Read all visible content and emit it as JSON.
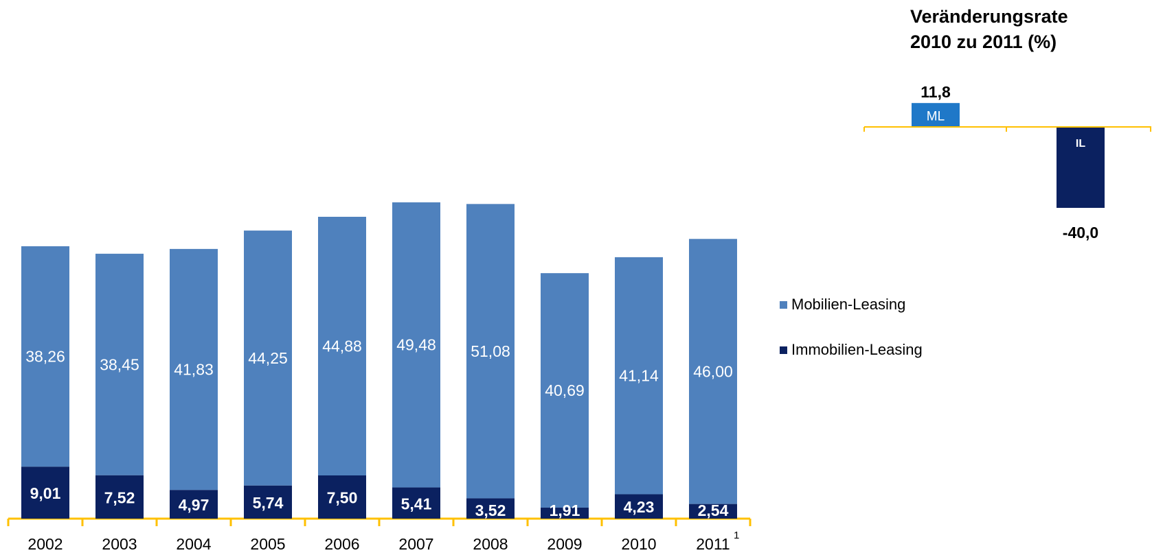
{
  "chart_data": [
    {
      "type": "bar",
      "stacked": true,
      "categories": [
        "2002",
        "2003",
        "2004",
        "2005",
        "2006",
        "2007",
        "2008",
        "2009",
        "2010",
        "2011"
      ],
      "footnote_marker": "1",
      "footnote_category": "2011",
      "series": [
        {
          "name": "Immobilien-Leasing",
          "values": [
            9.01,
            7.52,
            4.97,
            5.74,
            7.5,
            5.41,
            3.52,
            1.91,
            4.23,
            2.54
          ],
          "labels": [
            "9,01",
            "7,52",
            "4,97",
            "5,74",
            "7,50",
            "5,41",
            "3,52",
            "1,91",
            "4,23",
            "2,54"
          ],
          "color": "#0B2160"
        },
        {
          "name": "Mobilien-Leasing",
          "values": [
            38.26,
            38.45,
            41.83,
            44.25,
            44.88,
            49.48,
            51.08,
            40.69,
            41.14,
            46.0
          ],
          "labels": [
            "38,26",
            "38,45",
            "41,83",
            "44,25",
            "44,88",
            "49,48",
            "51,08",
            "40,69",
            "41,14",
            "46,00"
          ],
          "color": "#4F81BD"
        }
      ],
      "legend": {
        "placement": "right",
        "items": [
          {
            "name": "Mobilien-Leasing",
            "color": "#4F81BD"
          },
          {
            "name": "Immobilien-Leasing",
            "color": "#0B2160"
          }
        ]
      },
      "grid": false,
      "axis_color": "#FFC000"
    },
    {
      "type": "bar",
      "title_lines": [
        "Veränderungsrate",
        "2010 zu 2011 (%)"
      ],
      "categories": [
        "ML",
        "IL"
      ],
      "values": [
        11.8,
        -40.0
      ],
      "labels": [
        "11,8",
        "-40,0"
      ],
      "colors": [
        "#1F78C8",
        "#0B2160"
      ],
      "axis_color": "#FFC000"
    }
  ]
}
